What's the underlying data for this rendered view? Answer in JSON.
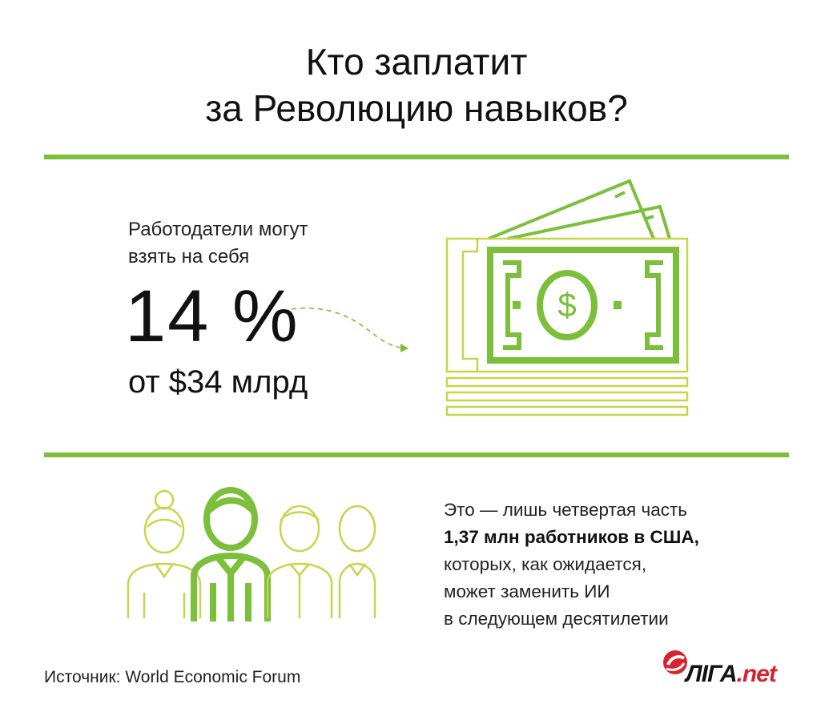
{
  "title": {
    "line1": "Кто заплатит",
    "line2": "за Революцию навыков?"
  },
  "employers": {
    "lead_line1": "Работодатели могут",
    "lead_line2": "взять на себя",
    "percent": "14 %",
    "amount": "от $34 млрд"
  },
  "workers": {
    "line1": "Это — лишь четвертая часть",
    "line2": "1,37 млн работников в США,",
    "line3": "которых, как ожидается,",
    "line4": "может заменить ИИ",
    "line5": "в следующем десятилетии"
  },
  "source": "Источник: World Economic Forum",
  "logo": {
    "part1": "ЛІГА",
    "part2": ".net"
  },
  "icons": {
    "money": "money-stack-icon",
    "people": "people-group-icon",
    "arrow": "dashed-arrow-icon",
    "logo": "liga-logo-icon"
  },
  "colors": {
    "accent": "#7bbf3a",
    "light_outline": "#c5d64a",
    "brand_red": "#d7232f"
  }
}
